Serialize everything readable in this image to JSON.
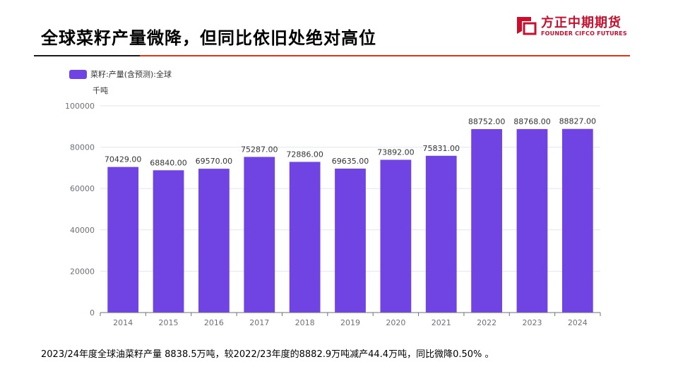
{
  "slide": {
    "title": "全球菜籽产量微降，但同比依旧处绝对高位",
    "footnote": "2023/24年度全球油菜籽产量 8838.5万吨，较2022/23年度的8882.9万吨减产44.4万吨，同比微降0.50% 。"
  },
  "logo": {
    "name_cn": "方正中期期货",
    "name_en": "FOUNDER CIFCO FUTURES",
    "icon": "founder-logo-icon",
    "color": "#c8102e"
  },
  "chart_data": {
    "type": "bar",
    "title": "",
    "legend": "菜籽:产量(含预测):全球",
    "legend_position": "top-left",
    "unit": "千吨",
    "xlabel": "",
    "ylabel": "千吨",
    "categories": [
      "2014",
      "2015",
      "2016",
      "2017",
      "2018",
      "2019",
      "2020",
      "2021",
      "2022",
      "2023",
      "2024"
    ],
    "values": [
      70429.0,
      68840.0,
      69570.0,
      75287.0,
      72886.0,
      69635.0,
      73892.0,
      75831.0,
      88752.0,
      88768.0,
      88827.0
    ],
    "value_labels": [
      "70429.00",
      "68840.00",
      "69570.00",
      "75287.00",
      "72886.00",
      "69635.00",
      "73892.00",
      "75831.00",
      "88752.00",
      "88768.00",
      "88827.00"
    ],
    "ylim": [
      0,
      100000
    ],
    "yticks": [
      "0",
      "20000",
      "40000",
      "60000",
      "80000",
      "100000"
    ],
    "grid": true,
    "bar_color": "#7044e3"
  }
}
